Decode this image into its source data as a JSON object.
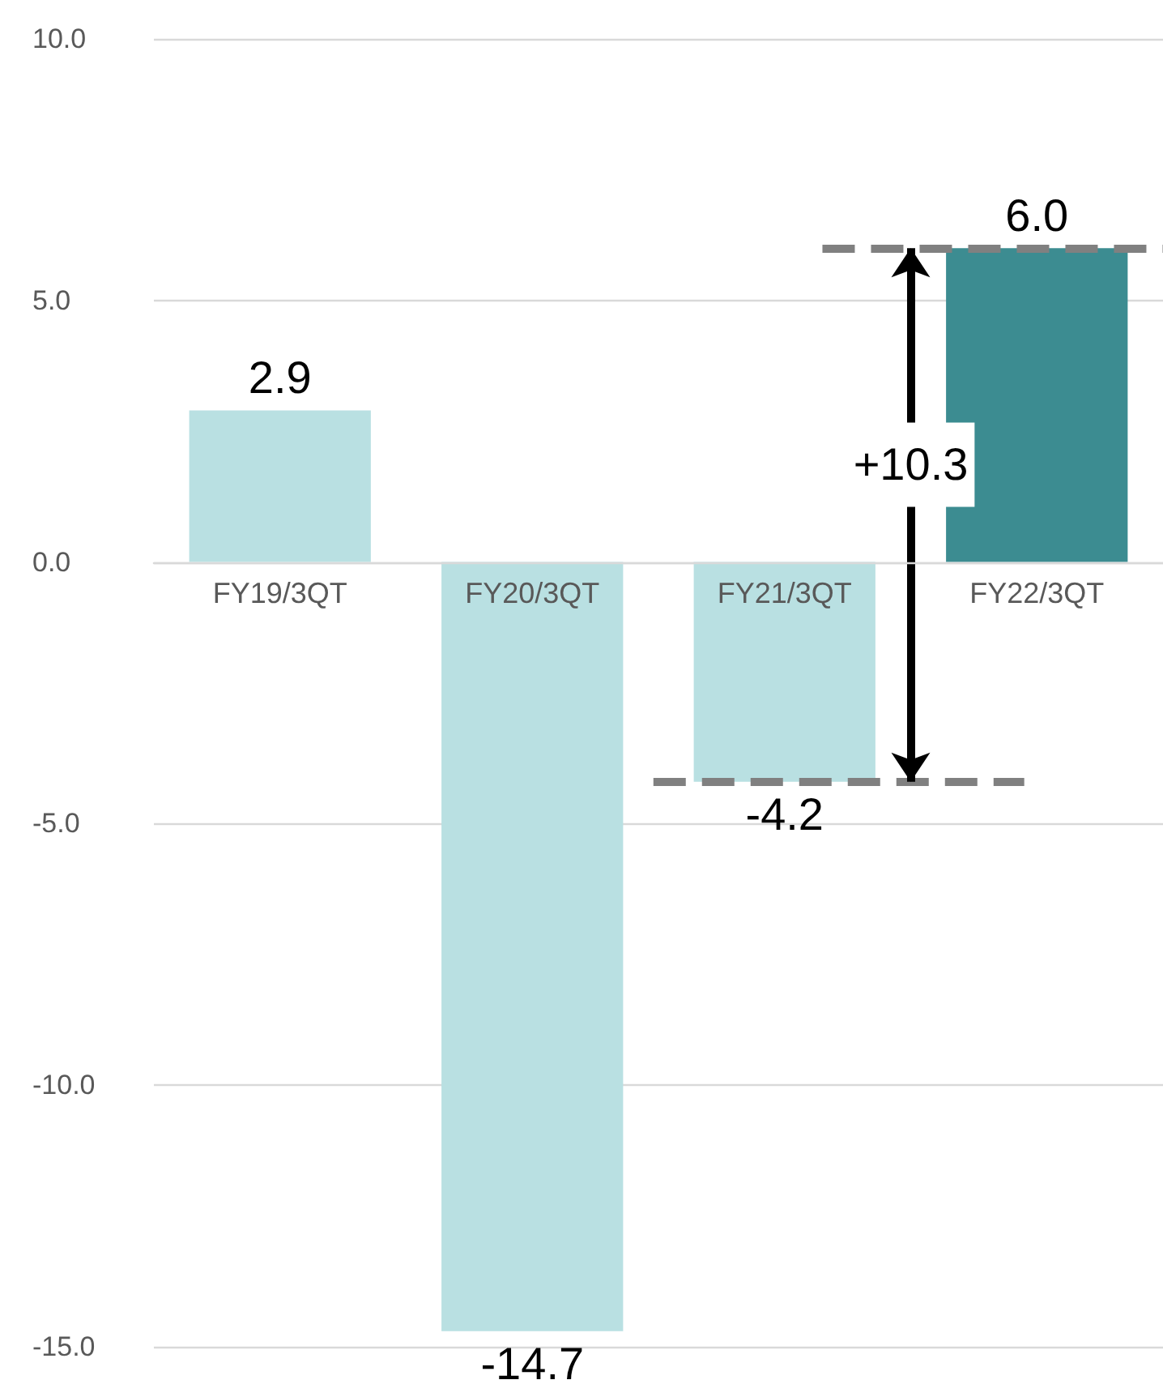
{
  "chart_data": {
    "type": "bar",
    "categories": [
      "FY19/3QT",
      "FY20/3QT",
      "FY21/3QT",
      "FY22/3QT"
    ],
    "values": [
      2.9,
      -14.7,
      -4.2,
      6.0
    ],
    "colors": [
      "#b9e0e2",
      "#b9e0e2",
      "#b9e0e2",
      "#3c8c91"
    ],
    "value_labels": [
      "2.9",
      "-14.7",
      "-4.2",
      "6.0"
    ],
    "ylim": [
      -15,
      10
    ],
    "yticks": [
      {
        "value": -15,
        "label": "-15.0"
      },
      {
        "value": -10,
        "label": "-10.0"
      },
      {
        "value": -5,
        "label": "-5.0"
      },
      {
        "value": 0,
        "label": "0.0"
      },
      {
        "value": 5,
        "label": "5.0"
      },
      {
        "value": 10,
        "label": "10.0"
      }
    ],
    "grid": "y",
    "ref_lines": [
      {
        "axis": "y",
        "value": 6.0,
        "color": "#808080",
        "line_style": "dashed"
      },
      {
        "axis": "y",
        "value": -4.2,
        "color": "#808080",
        "line_style": "dashed"
      }
    ],
    "annotations": [
      "+10.3"
    ]
  }
}
